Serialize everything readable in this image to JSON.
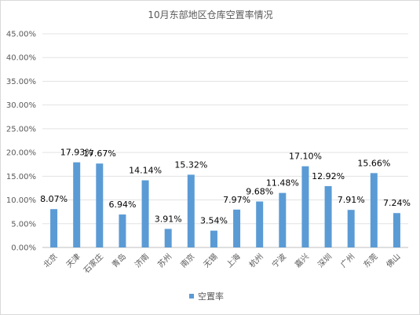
{
  "chart_data": {
    "type": "bar",
    "title": "10月东部地区仓库空置率情况",
    "categories": [
      "北京",
      "天津",
      "石家庄",
      "青岛",
      "济南",
      "苏州",
      "南京",
      "无锡",
      "上海",
      "杭州",
      "宁波",
      "嘉兴",
      "深圳",
      "广州",
      "东莞",
      "佛山"
    ],
    "series": [
      {
        "name": "空置率",
        "values": [
          8.07,
          17.93,
          17.67,
          6.94,
          14.14,
          3.91,
          15.32,
          3.54,
          7.97,
          9.68,
          11.48,
          17.1,
          12.92,
          7.91,
          15.66,
          7.24
        ],
        "labels": [
          "8.07%",
          "17.93%",
          "17.67%",
          "6.94%",
          "14.14%",
          "3.91%",
          "15.32%",
          "3.54%",
          "7.97%",
          "9.68%",
          "11.48%",
          "17.10%",
          "12.92%",
          "7.91%",
          "15.66%",
          "7.24%"
        ],
        "color": "#5b9bd5"
      }
    ],
    "y_ticks": [
      "0.00%",
      "5.00%",
      "10.00%",
      "15.00%",
      "20.00%",
      "25.00%",
      "30.00%",
      "35.00%",
      "40.00%",
      "45.00%"
    ],
    "ylim": [
      0,
      45
    ],
    "grid": true,
    "legend": "bottom"
  }
}
